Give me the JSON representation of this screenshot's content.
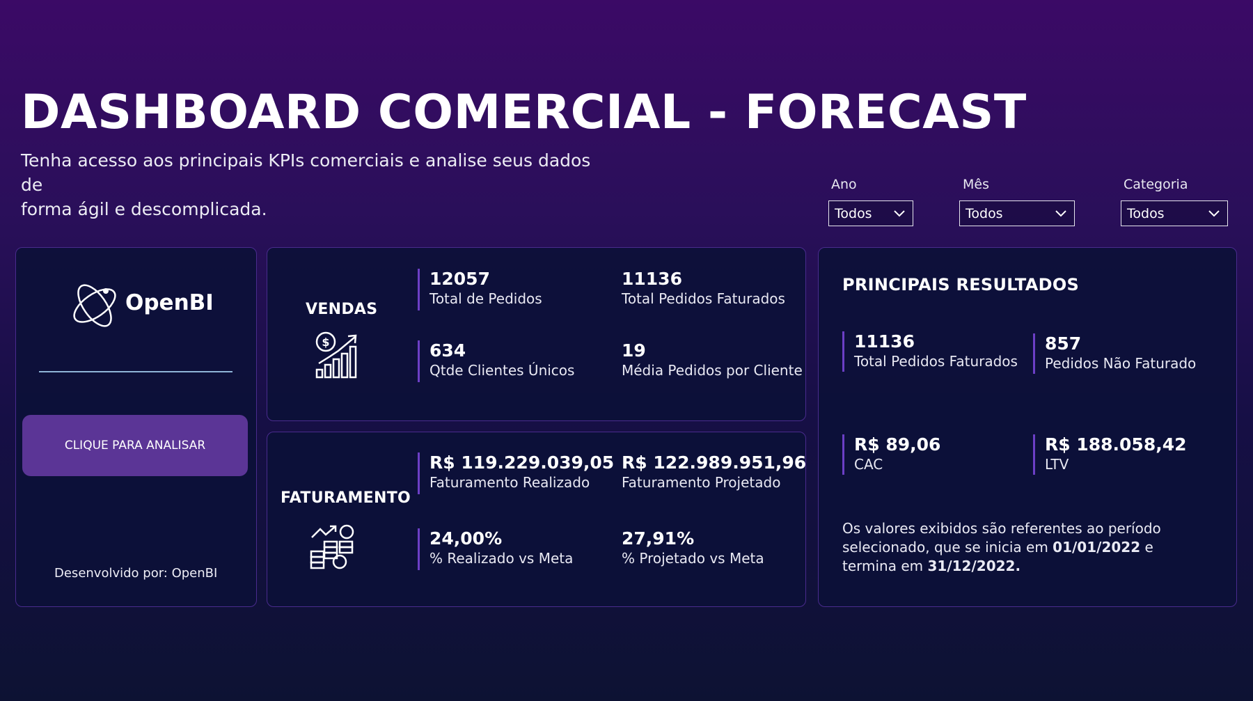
{
  "header": {
    "title": "DASHBOARD COMERCIAL - FORECAST",
    "subtitle_line1": "Tenha acesso aos principais KPIs comerciais e analise seus dados de",
    "subtitle_line2": "forma ágil e descomplicada."
  },
  "filters": [
    {
      "label": "Ano",
      "value": "Todos"
    },
    {
      "label": "Mês",
      "value": "Todos"
    },
    {
      "label": "Categoria",
      "value": "Todos"
    }
  ],
  "brand": {
    "logo_text": "OpenBI",
    "analyze_button": "CLIQUE PARA ANALISAR",
    "developed_by": "Desenvolvido por: OpenBI"
  },
  "vendas": {
    "title": "VENDAS",
    "icon": "sales-growth-icon",
    "kpis": [
      {
        "value": "12057",
        "label": "Total de Pedidos"
      },
      {
        "value": "11136",
        "label": "Total Pedidos Faturados"
      },
      {
        "value": "634",
        "label": "Qtde Clientes Únicos"
      },
      {
        "value": "19",
        "label": "Média Pedidos por Cliente"
      }
    ]
  },
  "faturamento": {
    "title": "FATURAMENTO",
    "icon": "revenue-coins-icon",
    "kpis": [
      {
        "value": "R$ 119.229.039,05",
        "label": "Faturamento Realizado"
      },
      {
        "value": "R$ 122.989.951,96",
        "label": "Faturamento Projetado"
      },
      {
        "value": "24,00%",
        "label": "% Realizado vs Meta"
      },
      {
        "value": "27,91%",
        "label": "% Projetado vs Meta"
      }
    ]
  },
  "resultados": {
    "title": "PRINCIPAIS RESULTADOS",
    "kpis": [
      {
        "value": "11136",
        "label": "Total Pedidos Faturados"
      },
      {
        "value": "857",
        "label": "Pedidos Não Faturado"
      },
      {
        "value": "R$ 89,06",
        "label": "CAC"
      },
      {
        "value": "R$ 188.058,42",
        "label": "LTV"
      }
    ],
    "note": {
      "part1": "Os valores exibidos são referentes ao período selecionado, que se inicia em ",
      "start_date": "01/01/2022",
      "part2": " e termina em ",
      "end_date": "31/12/2022."
    }
  },
  "colors": {
    "accent": "#6c3fc6",
    "button": "#5b3596",
    "card_bg": "#0c1038",
    "divider": "#8fb5d8"
  }
}
